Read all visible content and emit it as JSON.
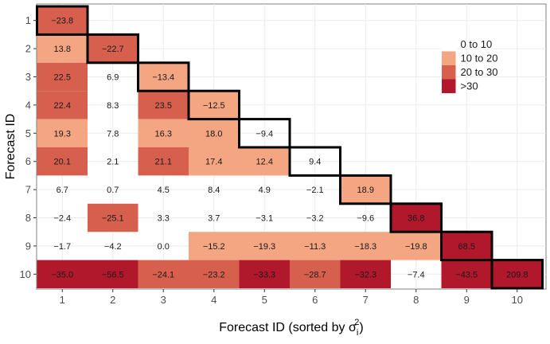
{
  "chart_data": {
    "type": "heatmap",
    "xlabel": "Forecast ID (sorted by σᵢ²)",
    "xlabel_main": "Forecast ID (sorted by σ",
    "xlabel_sub": "i",
    "xlabel_sup": "2",
    "xlabel_close": ")",
    "ylabel": "Forecast ID",
    "x_categories": [
      "1",
      "2",
      "3",
      "4",
      "5",
      "6",
      "7",
      "8",
      "9",
      "10"
    ],
    "y_categories": [
      "1",
      "2",
      "3",
      "4",
      "5",
      "6",
      "7",
      "8",
      "9",
      "10"
    ],
    "cells": [
      {
        "row": 1,
        "col": 1,
        "label": "−23.8",
        "bin": "20 to 30",
        "diagonal": true
      },
      {
        "row": 2,
        "col": 1,
        "label": "13.8",
        "bin": "10 to 20"
      },
      {
        "row": 2,
        "col": 2,
        "label": "−22.7",
        "bin": "20 to 30",
        "diagonal": true
      },
      {
        "row": 3,
        "col": 1,
        "label": "22.5",
        "bin": "20 to 30"
      },
      {
        "row": 3,
        "col": 2,
        "label": "6.9",
        "bin": "0 to 10"
      },
      {
        "row": 3,
        "col": 3,
        "label": "−13.4",
        "bin": "10 to 20",
        "diagonal": true
      },
      {
        "row": 4,
        "col": 1,
        "label": "22.4",
        "bin": "20 to 30"
      },
      {
        "row": 4,
        "col": 2,
        "label": "8.3",
        "bin": "0 to 10"
      },
      {
        "row": 4,
        "col": 3,
        "label": "23.5",
        "bin": "20 to 30"
      },
      {
        "row": 4,
        "col": 4,
        "label": "−12.5",
        "bin": "10 to 20",
        "diagonal": true
      },
      {
        "row": 5,
        "col": 1,
        "label": "19.3",
        "bin": "10 to 20"
      },
      {
        "row": 5,
        "col": 2,
        "label": "7.8",
        "bin": "0 to 10"
      },
      {
        "row": 5,
        "col": 3,
        "label": "16.3",
        "bin": "10 to 20"
      },
      {
        "row": 5,
        "col": 4,
        "label": "18.0",
        "bin": "10 to 20"
      },
      {
        "row": 5,
        "col": 5,
        "label": "−9.4",
        "bin": "0 to 10",
        "diagonal": true
      },
      {
        "row": 6,
        "col": 1,
        "label": "20.1",
        "bin": "20 to 30"
      },
      {
        "row": 6,
        "col": 2,
        "label": "2.1",
        "bin": "0 to 10"
      },
      {
        "row": 6,
        "col": 3,
        "label": "21.1",
        "bin": "20 to 30"
      },
      {
        "row": 6,
        "col": 4,
        "label": "17.4",
        "bin": "10 to 20"
      },
      {
        "row": 6,
        "col": 5,
        "label": "12.4",
        "bin": "10 to 20"
      },
      {
        "row": 6,
        "col": 6,
        "label": "9.4",
        "bin": "0 to 10",
        "diagonal": true
      },
      {
        "row": 7,
        "col": 1,
        "label": "6.7",
        "bin": "0 to 10"
      },
      {
        "row": 7,
        "col": 2,
        "label": "0.7",
        "bin": "0 to 10"
      },
      {
        "row": 7,
        "col": 3,
        "label": "4.5",
        "bin": "0 to 10"
      },
      {
        "row": 7,
        "col": 4,
        "label": "8.4",
        "bin": "0 to 10"
      },
      {
        "row": 7,
        "col": 5,
        "label": "4.9",
        "bin": "0 to 10"
      },
      {
        "row": 7,
        "col": 6,
        "label": "−2.1",
        "bin": "0 to 10"
      },
      {
        "row": 7,
        "col": 7,
        "label": "18.9",
        "bin": "10 to 20",
        "diagonal": true
      },
      {
        "row": 8,
        "col": 1,
        "label": "−2.4",
        "bin": "0 to 10"
      },
      {
        "row": 8,
        "col": 2,
        "label": "−25.1",
        "bin": "20 to 30"
      },
      {
        "row": 8,
        "col": 3,
        "label": "3.3",
        "bin": "0 to 10"
      },
      {
        "row": 8,
        "col": 4,
        "label": "3.7",
        "bin": "0 to 10"
      },
      {
        "row": 8,
        "col": 5,
        "label": "−3.1",
        "bin": "0 to 10"
      },
      {
        "row": 8,
        "col": 6,
        "label": "−3.2",
        "bin": "0 to 10"
      },
      {
        "row": 8,
        "col": 7,
        "label": "−9.6",
        "bin": "0 to 10"
      },
      {
        "row": 8,
        "col": 8,
        "label": "36.8",
        "bin": ">30",
        "diagonal": true
      },
      {
        "row": 9,
        "col": 1,
        "label": "−1.7",
        "bin": "0 to 10"
      },
      {
        "row": 9,
        "col": 2,
        "label": "−4.2",
        "bin": "0 to 10"
      },
      {
        "row": 9,
        "col": 3,
        "label": "0.0",
        "bin": "0 to 10"
      },
      {
        "row": 9,
        "col": 4,
        "label": "−15.2",
        "bin": "10 to 20"
      },
      {
        "row": 9,
        "col": 5,
        "label": "−19.3",
        "bin": "10 to 20"
      },
      {
        "row": 9,
        "col": 6,
        "label": "−11.3",
        "bin": "10 to 20"
      },
      {
        "row": 9,
        "col": 7,
        "label": "−18.3",
        "bin": "10 to 20"
      },
      {
        "row": 9,
        "col": 8,
        "label": "−19.8",
        "bin": "10 to 20"
      },
      {
        "row": 9,
        "col": 9,
        "label": "68.5",
        "bin": ">30",
        "diagonal": true
      },
      {
        "row": 10,
        "col": 1,
        "label": "−35.0",
        "bin": ">30"
      },
      {
        "row": 10,
        "col": 2,
        "label": "−56.5",
        "bin": ">30"
      },
      {
        "row": 10,
        "col": 3,
        "label": "−24.1",
        "bin": "20 to 30"
      },
      {
        "row": 10,
        "col": 4,
        "label": "−23.2",
        "bin": "20 to 30"
      },
      {
        "row": 10,
        "col": 5,
        "label": "−33.3",
        "bin": ">30"
      },
      {
        "row": 10,
        "col": 6,
        "label": "−28.7",
        "bin": "20 to 30"
      },
      {
        "row": 10,
        "col": 7,
        "label": "−32.3",
        "bin": ">30"
      },
      {
        "row": 10,
        "col": 8,
        "label": "−7.4",
        "bin": "0 to 10"
      },
      {
        "row": 10,
        "col": 9,
        "label": "−43.5",
        "bin": ">30"
      },
      {
        "row": 10,
        "col": 10,
        "label": "209.8",
        "bin": ">30",
        "diagonal": true
      }
    ],
    "legend": {
      "placement": "top-right",
      "entries": [
        {
          "label": "0 to 10",
          "color": "#ffffff"
        },
        {
          "label": "10 to 20",
          "color": "#f4a582"
        },
        {
          "label": "20 to 30",
          "color": "#d6604d"
        },
        {
          "label": ">30",
          "color": "#b2182b"
        }
      ]
    },
    "grid": true
  }
}
